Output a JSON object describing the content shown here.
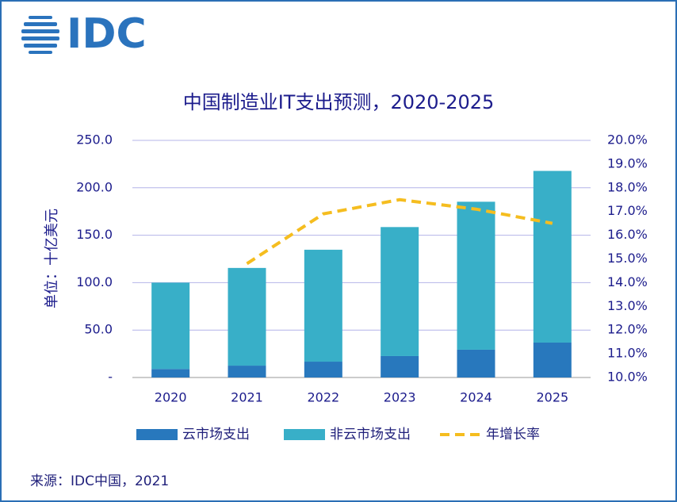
{
  "logo": "IDC",
  "chart_data": {
    "type": "bar",
    "stacked": true,
    "title": "中国制造业IT支出预测，2020-2025",
    "ylabel": "单位：十亿美元",
    "source": "来源：IDC中国，2021",
    "categories": [
      "2020",
      "2021",
      "2022",
      "2023",
      "2024",
      "2025"
    ],
    "series": [
      {
        "name": "云市场支出",
        "color": "#2878bd",
        "values": [
          9,
          12.5,
          16.7,
          22.6,
          29.3,
          36.8
        ]
      },
      {
        "name": "非云市场支出",
        "color": "#38afc8",
        "values": [
          91,
          103,
          118,
          136,
          156,
          181
        ]
      },
      {
        "name": "年增长率",
        "color": "#f5bd1f",
        "type": "line",
        "dashed": true,
        "axis": "y2",
        "values": [
          null,
          14.8,
          16.9,
          17.5,
          17.1,
          16.5
        ]
      }
    ],
    "ylim": [
      0,
      250
    ],
    "yticks": [
      {
        "value": 0,
        "label": "-"
      },
      {
        "value": 50,
        "label": "50.0"
      },
      {
        "value": 100,
        "label": "100.0"
      },
      {
        "value": 150,
        "label": "150.0"
      },
      {
        "value": 200,
        "label": "200.0"
      },
      {
        "value": 250,
        "label": "250.0"
      }
    ],
    "y2lim": [
      10,
      20
    ],
    "y2ticks": [
      {
        "value": 10,
        "label": "10.0%"
      },
      {
        "value": 11,
        "label": "11.0%"
      },
      {
        "value": 12,
        "label": "12.0%"
      },
      {
        "value": 13,
        "label": "13.0%"
      },
      {
        "value": 14,
        "label": "14.0%"
      },
      {
        "value": 15,
        "label": "15.0%"
      },
      {
        "value": 16,
        "label": "16.0%"
      },
      {
        "value": 17,
        "label": "17.0%"
      },
      {
        "value": 18,
        "label": "18.0%"
      },
      {
        "value": 19,
        "label": "19.0%"
      },
      {
        "value": 20,
        "label": "20.0%"
      }
    ],
    "grid": true,
    "legend": "bottom"
  }
}
